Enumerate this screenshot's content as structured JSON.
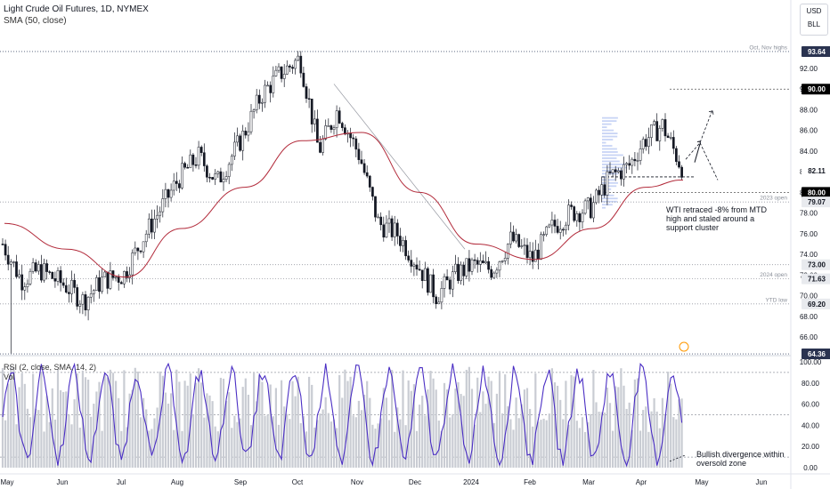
{
  "header": {
    "title": "Light Crude Oil Futures, 1D, NYMEX",
    "sma_label": "SMA (50, close)",
    "rsi_label": "RSI (2, close, SMA, 14, 2)",
    "vol_label": "Vol"
  },
  "currency": {
    "line1": "USD",
    "line2": "BLL"
  },
  "chart_data": {
    "type": "candlestick",
    "symbol": "Light Crude Oil Futures",
    "timeframe": "1D",
    "exchange": "NYMEX",
    "x_ticks": [
      "May",
      "Jun",
      "Jul",
      "Aug",
      "Sep",
      "Oct",
      "Nov",
      "Dec",
      "2024",
      "Feb",
      "Mar",
      "Apr",
      "May",
      "Jun"
    ],
    "y_ticks": [
      "66.00",
      "68.00",
      "70.00",
      "72.00",
      "74.00",
      "76.00",
      "78.00",
      "80.00",
      "82.00",
      "84.00",
      "86.00",
      "88.00",
      "90.00",
      "92.00"
    ],
    "price_labels": [
      {
        "value": 93.64,
        "text": "93.64",
        "style": "dark",
        "line_label": "Oct, Nov highs"
      },
      {
        "value": 90.0,
        "text": "90.00",
        "style": "black",
        "line_label": ""
      },
      {
        "value": 82.11,
        "text": "82.11",
        "style": "plain",
        "line_label": ""
      },
      {
        "value": 80.0,
        "text": "80.00",
        "style": "black",
        "line_label": ""
      },
      {
        "value": 79.07,
        "text": "79.07",
        "style": "gray",
        "line_label": "2023 open"
      },
      {
        "value": 73.0,
        "text": "73.00",
        "style": "gray",
        "line_label": ""
      },
      {
        "value": 71.63,
        "text": "71.63",
        "style": "gray",
        "line_label": "2024 open"
      },
      {
        "value": 69.2,
        "text": "69.20",
        "style": "gray",
        "line_label": "YTD low"
      },
      {
        "value": 64.36,
        "text": "64.36",
        "style": "dark",
        "line_label": ""
      }
    ],
    "ohlc_path": [
      {
        "x": "May",
        "close": 75.0
      },
      {
        "x": "May",
        "close": 71.5
      },
      {
        "x": "May",
        "close": 72.5
      },
      {
        "x": "Jun",
        "close": 71.0
      },
      {
        "x": "Jun",
        "close": 69.5
      },
      {
        "x": "Jun",
        "close": 71.5
      },
      {
        "x": "Jul",
        "close": 72.0
      },
      {
        "x": "Jul",
        "close": 75.5
      },
      {
        "x": "Jul",
        "close": 78.5
      },
      {
        "x": "Aug",
        "close": 81.5
      },
      {
        "x": "Aug",
        "close": 83.5
      },
      {
        "x": "Aug",
        "close": 81.0
      },
      {
        "x": "Sep",
        "close": 85.5
      },
      {
        "x": "Sep",
        "close": 89.5
      },
      {
        "x": "Sep",
        "close": 91.5
      },
      {
        "x": "Oct",
        "close": 93.0
      },
      {
        "x": "Oct",
        "close": 84.0
      },
      {
        "x": "Oct",
        "close": 88.0
      },
      {
        "x": "Nov",
        "close": 83.5
      },
      {
        "x": "Nov",
        "close": 77.0
      },
      {
        "x": "Nov",
        "close": 76.0
      },
      {
        "x": "Dec",
        "close": 73.0
      },
      {
        "x": "Dec",
        "close": 70.0
      },
      {
        "x": "Dec",
        "close": 72.0
      },
      {
        "x": "2024",
        "close": 73.0
      },
      {
        "x": "2024",
        "close": 72.5
      },
      {
        "x": "2024",
        "close": 75.5
      },
      {
        "x": "Feb",
        "close": 73.5
      },
      {
        "x": "Feb",
        "close": 76.5
      },
      {
        "x": "Feb",
        "close": 78.0
      },
      {
        "x": "Mar",
        "close": 78.5
      },
      {
        "x": "Mar",
        "close": 81.5
      },
      {
        "x": "Mar",
        "close": 82.5
      },
      {
        "x": "Apr",
        "close": 85.0
      },
      {
        "x": "Apr",
        "close": 86.5
      },
      {
        "x": "Apr",
        "close": 82.5
      }
    ],
    "sma50_path": [
      {
        "x": "May",
        "value": 77.0
      },
      {
        "x": "Jun",
        "value": 74.5
      },
      {
        "x": "Jul",
        "value": 71.8
      },
      {
        "x": "Aug",
        "value": 76.5
      },
      {
        "x": "Sep",
        "value": 80.5
      },
      {
        "x": "Oct",
        "value": 85.0
      },
      {
        "x": "Nov",
        "value": 85.8
      },
      {
        "x": "Dec",
        "value": 80.0
      },
      {
        "x": "2024",
        "value": 75.0
      },
      {
        "x": "Feb",
        "value": 73.5
      },
      {
        "x": "Mar",
        "value": 76.5
      },
      {
        "x": "Apr",
        "value": 80.5
      }
    ],
    "rsi": {
      "ylim": [
        0,
        100
      ],
      "levels": [
        10,
        50,
        90
      ],
      "y_ticks": [
        "0.00",
        "20.00",
        "40.00",
        "60.00",
        "80.00",
        "100.00"
      ]
    },
    "annotations": [
      "WTI retraced  -8% from MTD high and staled around a support cluster",
      "Bullish divergence within oversold zone"
    ],
    "colors": {
      "candle": "#131722",
      "sma": "#b22a3a",
      "rsi": "#4a2ec4",
      "volume": "#c9ccd3",
      "grid_dot": "#2962ff"
    }
  },
  "notes": {
    "wti_line1": "WTI retraced  -8% from MTD",
    "wti_line2": "high and staled around a",
    "wti_line3": "support cluster",
    "div_line1": "Bullish divergence within",
    "div_line2": "oversold zone"
  }
}
